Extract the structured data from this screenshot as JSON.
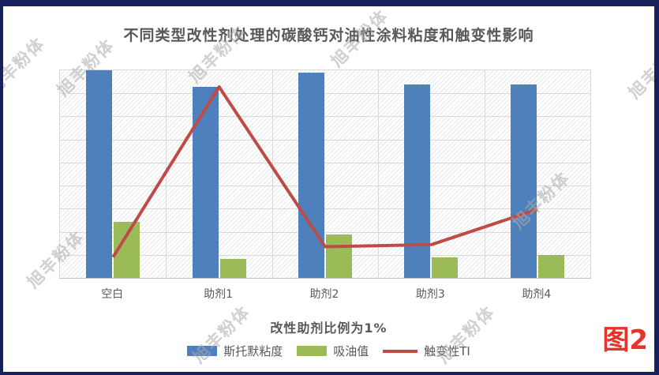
{
  "window": {
    "border_color": "#16215c"
  },
  "chart_data": {
    "type": "combo",
    "title": "不同类型改性剂处理的碳酸钙对油性涂料粘度和触变性影响",
    "xlabel": "改性助剂比例为1%",
    "ylabel": "",
    "categories": [
      "空白",
      "助剂1",
      "助剂2",
      "助剂3",
      "助剂4"
    ],
    "series": [
      {
        "id": "stormer-viscosity",
        "name": "斯托默粘度",
        "type": "bar",
        "color": "#4E80BC",
        "values": [
          100,
          92,
          99,
          93,
          93
        ]
      },
      {
        "id": "oil-absorption",
        "name": "吸油值",
        "type": "bar",
        "color": "#9BBB59",
        "values": [
          27,
          9,
          21,
          10,
          11
        ]
      },
      {
        "id": "thixotropy-ti",
        "name": "触变性TI",
        "type": "line",
        "color": "#BE4B48",
        "values": [
          10,
          92,
          15,
          16,
          33
        ]
      }
    ],
    "ylim": [
      0,
      100
    ],
    "y_axis_labels_visible": false,
    "grid": true,
    "legend_position": "bottom",
    "value_note": "y-axis shows no tick labels; values estimated as percent of plot height",
    "gridline_color": "#D9D9D9",
    "text_color": "#595959"
  },
  "figure_label": {
    "text": "图2",
    "color": "#E8332A"
  },
  "watermark": {
    "text": "旭丰粉体",
    "color": "#CFCFCF"
  }
}
